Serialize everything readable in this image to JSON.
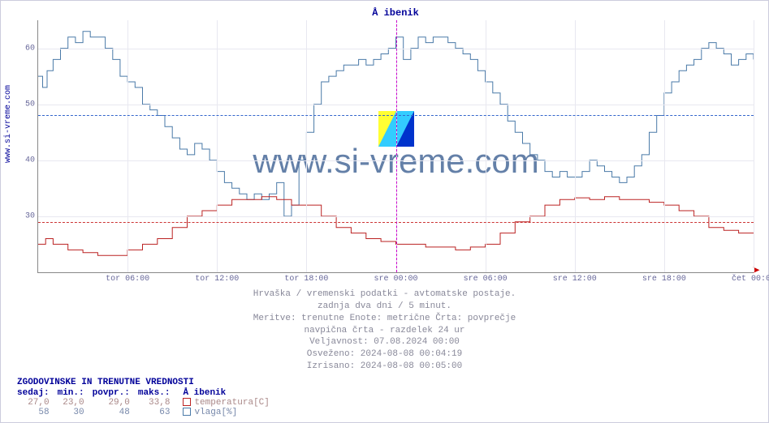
{
  "site_label": "www.si-vreme.com",
  "chart": {
    "title": "Å ibenik",
    "type": "line-step",
    "watermark_text": "www.si-vreme.com",
    "ylim": [
      20,
      65
    ],
    "yticks": [
      30,
      40,
      50,
      60
    ],
    "xticks": [
      "tor 06:00",
      "tor 12:00",
      "tor 18:00",
      "sre 00:00",
      "sre 06:00",
      "sre 12:00",
      "sre 18:00",
      "čet 00:00"
    ],
    "xrange": [
      0,
      48
    ],
    "vline_at": 24,
    "vline_color": "#cc00cc",
    "grid_color": "#e8e8f0",
    "background_color": "#ffffff",
    "axis_color": "#888888",
    "ref_lines": [
      {
        "y": 29,
        "color": "#cc3333"
      },
      {
        "y": 48,
        "color": "#3366cc"
      }
    ],
    "series": {
      "temp": {
        "color": "#bb2222",
        "stroke_width": 1,
        "points": [
          [
            0,
            25
          ],
          [
            0.5,
            26
          ],
          [
            1,
            25
          ],
          [
            2,
            24
          ],
          [
            3,
            23.5
          ],
          [
            4,
            23
          ],
          [
            5,
            23
          ],
          [
            6,
            24
          ],
          [
            7,
            25
          ],
          [
            8,
            26
          ],
          [
            9,
            28
          ],
          [
            10,
            30
          ],
          [
            11,
            31
          ],
          [
            12,
            32
          ],
          [
            13,
            33
          ],
          [
            14,
            33
          ],
          [
            15,
            33.5
          ],
          [
            16,
            33
          ],
          [
            17,
            32
          ],
          [
            18,
            32
          ],
          [
            19,
            30
          ],
          [
            20,
            28
          ],
          [
            21,
            27
          ],
          [
            22,
            26
          ],
          [
            23,
            25.5
          ],
          [
            24,
            25
          ],
          [
            25,
            25
          ],
          [
            26,
            24.5
          ],
          [
            27,
            24.5
          ],
          [
            28,
            24
          ],
          [
            29,
            24.5
          ],
          [
            30,
            25
          ],
          [
            31,
            27
          ],
          [
            32,
            29
          ],
          [
            33,
            30
          ],
          [
            34,
            32
          ],
          [
            35,
            33
          ],
          [
            36,
            33.3
          ],
          [
            37,
            33
          ],
          [
            38,
            33.5
          ],
          [
            39,
            33
          ],
          [
            40,
            33
          ],
          [
            41,
            32.5
          ],
          [
            42,
            32
          ],
          [
            43,
            31
          ],
          [
            44,
            30
          ],
          [
            45,
            28
          ],
          [
            46,
            27.5
          ],
          [
            47,
            27
          ],
          [
            48,
            27
          ]
        ]
      },
      "humidity": {
        "color": "#4a7aa8",
        "stroke_width": 1,
        "points": [
          [
            0,
            55
          ],
          [
            0.3,
            53
          ],
          [
            0.6,
            56
          ],
          [
            1,
            58
          ],
          [
            1.5,
            60
          ],
          [
            2,
            62
          ],
          [
            2.5,
            61
          ],
          [
            3,
            63
          ],
          [
            3.5,
            62
          ],
          [
            4,
            62
          ],
          [
            4.5,
            60
          ],
          [
            5,
            58
          ],
          [
            5.5,
            55
          ],
          [
            6,
            54
          ],
          [
            6.5,
            53
          ],
          [
            7,
            50
          ],
          [
            7.5,
            49
          ],
          [
            8,
            48
          ],
          [
            8.5,
            46
          ],
          [
            9,
            44
          ],
          [
            9.5,
            42
          ],
          [
            10,
            41
          ],
          [
            10.5,
            43
          ],
          [
            11,
            42
          ],
          [
            11.5,
            40
          ],
          [
            12,
            38
          ],
          [
            12.5,
            36
          ],
          [
            13,
            35
          ],
          [
            13.5,
            34
          ],
          [
            14,
            33
          ],
          [
            14.5,
            34
          ],
          [
            15,
            33
          ],
          [
            15.5,
            34
          ],
          [
            16,
            36
          ],
          [
            16.5,
            30
          ],
          [
            17,
            32
          ],
          [
            17.5,
            40
          ],
          [
            18,
            45
          ],
          [
            18.5,
            50
          ],
          [
            19,
            54
          ],
          [
            19.5,
            55
          ],
          [
            20,
            56
          ],
          [
            20.5,
            57
          ],
          [
            21,
            57
          ],
          [
            21.5,
            58
          ],
          [
            22,
            57
          ],
          [
            22.5,
            58
          ],
          [
            23,
            59
          ],
          [
            23.5,
            60
          ],
          [
            24,
            62
          ],
          [
            24.5,
            58
          ],
          [
            25,
            60
          ],
          [
            25.5,
            62
          ],
          [
            26,
            61
          ],
          [
            26.5,
            62
          ],
          [
            27,
            62
          ],
          [
            27.5,
            61
          ],
          [
            28,
            60
          ],
          [
            28.5,
            59
          ],
          [
            29,
            58
          ],
          [
            29.5,
            56
          ],
          [
            30,
            54
          ],
          [
            30.5,
            52
          ],
          [
            31,
            50
          ],
          [
            31.5,
            47
          ],
          [
            32,
            45
          ],
          [
            32.5,
            43
          ],
          [
            33,
            41
          ],
          [
            33.5,
            40
          ],
          [
            34,
            38
          ],
          [
            34.5,
            37
          ],
          [
            35,
            38
          ],
          [
            35.5,
            37
          ],
          [
            36,
            37
          ],
          [
            36.5,
            38
          ],
          [
            37,
            40
          ],
          [
            37.5,
            39
          ],
          [
            38,
            38
          ],
          [
            38.5,
            37
          ],
          [
            39,
            36
          ],
          [
            39.5,
            37
          ],
          [
            40,
            39
          ],
          [
            40.5,
            41
          ],
          [
            41,
            45
          ],
          [
            41.5,
            48
          ],
          [
            42,
            52
          ],
          [
            42.5,
            54
          ],
          [
            43,
            56
          ],
          [
            43.5,
            57
          ],
          [
            44,
            58
          ],
          [
            44.5,
            60
          ],
          [
            45,
            61
          ],
          [
            45.5,
            60
          ],
          [
            46,
            59
          ],
          [
            46.5,
            57
          ],
          [
            47,
            58
          ],
          [
            47.5,
            59
          ],
          [
            48,
            58
          ]
        ]
      }
    }
  },
  "caption": {
    "line1": "Hrvaška / vremenski podatki - avtomatske postaje.",
    "line2": "zadnja dva dni / 5 minut.",
    "line3": "Meritve: trenutne  Enote: metrične  Črta: povprečje",
    "line4": "navpična črta - razdelek 24 ur",
    "line5": "Veljavnost: 07.08.2024 00:00",
    "line6": "Osveženo: 2024-08-08 00:04:19",
    "line7": "Izrisano: 2024-08-08 00:05:00"
  },
  "stats": {
    "title": "ZGODOVINSKE IN TRENUTNE VREDNOSTI",
    "headers": {
      "now": "sedaj:",
      "min": "min.:",
      "avg": "povpr.:",
      "max": "maks.:",
      "series": "Å ibenik"
    },
    "rows": [
      {
        "now": "27,0",
        "min": "23,0",
        "avg": "29,0",
        "max": "33,8",
        "label": "temperatura[C]",
        "swatch": "#bb2222",
        "color": "#aa8888"
      },
      {
        "now": "58",
        "min": "30",
        "avg": "48",
        "max": "63",
        "label": "vlaga[%]",
        "swatch": "#4a7aa8",
        "color": "#7788aa"
      }
    ]
  }
}
